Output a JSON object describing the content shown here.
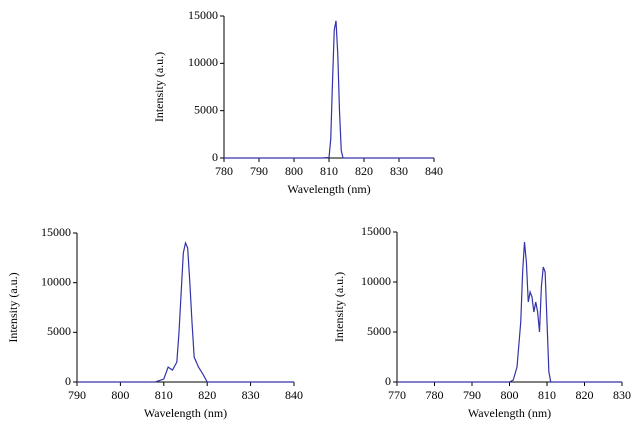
{
  "chart_data": [
    {
      "type": "line",
      "x_label": "Wavelength (nm)",
      "y_label": "Intensity (a.u.)",
      "x": [
        780,
        808,
        810,
        810.5,
        811,
        811.5,
        812,
        812.5,
        813,
        813.5,
        814,
        816,
        840
      ],
      "series": [
        {
          "color": "#3333aa",
          "values": [
            0,
            0,
            50,
            2000,
            8000,
            13500,
            14500,
            11000,
            5000,
            800,
            0,
            0,
            0
          ]
        }
      ],
      "xlim": [
        780,
        840
      ],
      "xticks": [
        780,
        790,
        800,
        810,
        820,
        830,
        840
      ],
      "ylim": [
        0,
        15000
      ],
      "yticks": [
        0,
        5000,
        10000,
        15000
      ]
    },
    {
      "type": "line",
      "x_label": "Wavelength (nm)",
      "y_label": "Intensity (a.u.)",
      "x": [
        790,
        808,
        810,
        811,
        812,
        813,
        813.5,
        814,
        814.5,
        815,
        815.5,
        816,
        816.5,
        817,
        818,
        819,
        820,
        840
      ],
      "series": [
        {
          "color": "#3333aa",
          "values": [
            0,
            0,
            300,
            1500,
            1200,
            2000,
            5000,
            9000,
            13000,
            14000,
            13500,
            10000,
            6000,
            2500,
            1500,
            800,
            0,
            0
          ]
        }
      ],
      "xlim": [
        790,
        840
      ],
      "xticks": [
        790,
        800,
        810,
        820,
        830,
        840
      ],
      "ylim": [
        0,
        15000
      ],
      "yticks": [
        0,
        5000,
        10000,
        15000
      ]
    },
    {
      "type": "line",
      "x_label": "Wavelength (nm)",
      "y_label": "Intensity (a.u.)",
      "x": [
        770,
        800,
        801,
        802,
        803,
        803.5,
        804,
        804.5,
        805,
        805.5,
        806,
        806.5,
        807,
        807.5,
        808,
        808.5,
        809,
        809.5,
        810,
        810.5,
        811,
        830
      ],
      "series": [
        {
          "color": "#3333aa",
          "values": [
            0,
            0,
            200,
            1500,
            6000,
            11000,
            14000,
            12000,
            8000,
            9000,
            8500,
            7000,
            8000,
            7000,
            5000,
            9500,
            11500,
            11000,
            6000,
            1000,
            0,
            0
          ]
        }
      ],
      "xlim": [
        770,
        830
      ],
      "xticks": [
        770,
        780,
        790,
        800,
        810,
        820,
        830
      ],
      "ylim": [
        0,
        15000
      ],
      "yticks": [
        0,
        5000,
        10000,
        15000
      ]
    }
  ]
}
